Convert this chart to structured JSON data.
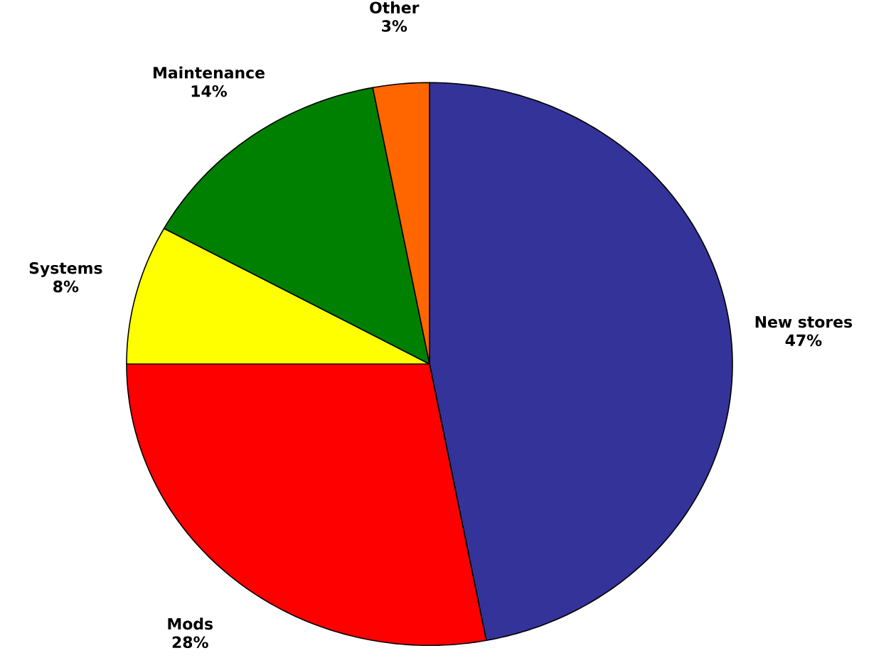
{
  "chart_data": {
    "type": "pie",
    "categories": [
      "New stores",
      "Mods",
      "Systems",
      "Maintenance",
      "Other"
    ],
    "values": [
      47,
      28,
      8,
      14,
      3
    ],
    "colors": [
      "#333399",
      "#ff0000",
      "#ffff00",
      "#008000",
      "#ff6600"
    ],
    "value_labels": [
      "47%",
      "28%",
      "8%",
      "14%",
      "3%"
    ]
  }
}
